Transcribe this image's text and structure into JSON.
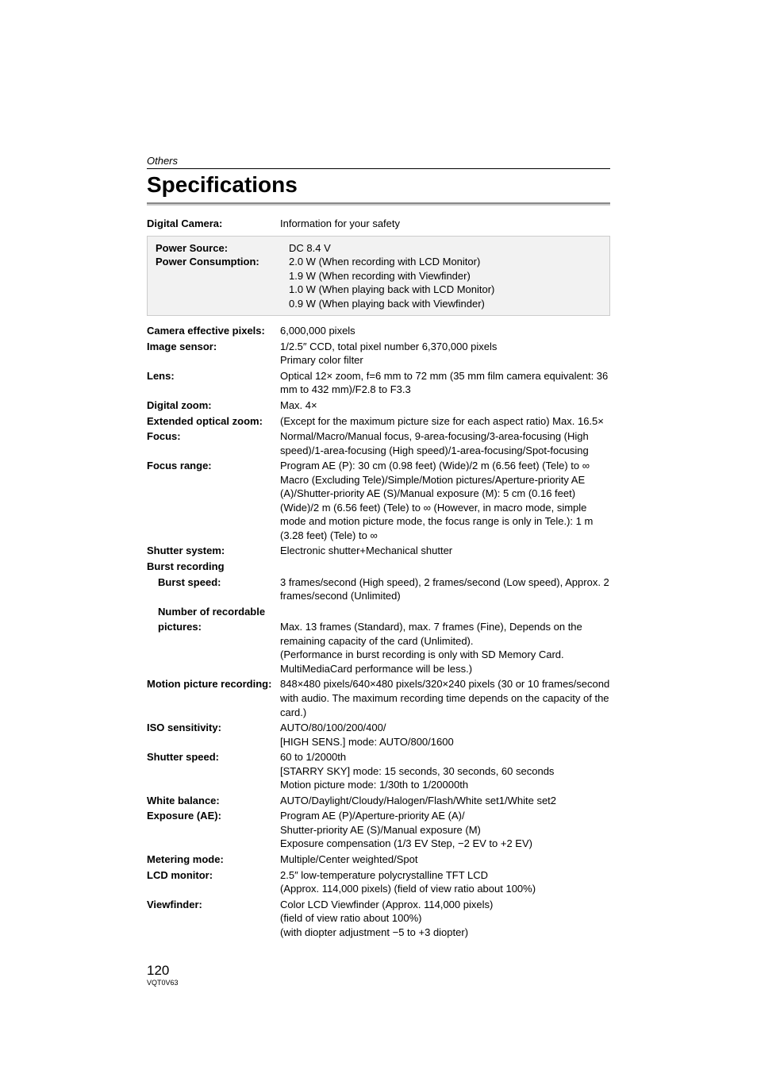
{
  "section": "Others",
  "title": "Specifications",
  "digital_camera": {
    "label": "Digital Camera:",
    "value": "Information for your safety"
  },
  "power_source": {
    "label": "Power Source:",
    "value": "DC 8.4 V"
  },
  "power_consumption": {
    "label": "Power Consumption:",
    "lines": [
      "2.0 W (When recording with LCD Monitor)",
      "1.9 W (When recording with Viewfinder)",
      "1.0 W (When playing back with LCD Monitor)",
      "0.9 W (When playing back with Viewfinder)"
    ]
  },
  "camera_effective_pixels": {
    "label": "Camera effective pixels:",
    "value": "6,000,000 pixels"
  },
  "image_sensor": {
    "label": "Image sensor:",
    "lines": [
      "1/2.5″ CCD, total pixel number 6,370,000 pixels",
      "Primary color filter"
    ]
  },
  "lens": {
    "label": "Lens:",
    "lines": [
      "Optical 12× zoom, f=6 mm to 72 mm (35 mm film camera equivalent: 36 mm to 432 mm)/F2.8 to F3.3"
    ]
  },
  "digital_zoom": {
    "label": "Digital zoom:",
    "value": "Max. 4×"
  },
  "extended_optical_zoom": {
    "label": "Extended optical zoom:",
    "lines": [
      "(Except for the maximum picture size for each aspect ratio) Max. 16.5×"
    ]
  },
  "focus": {
    "label": "Focus:",
    "lines": [
      "Normal/Macro/Manual focus, 9-area-focusing/3-area-focusing (High speed)/1-area-focusing (High speed)/1-area-focusing/Spot-focusing"
    ]
  },
  "focus_range": {
    "label": "Focus range:",
    "lines": [
      "Program AE (P): 30 cm (0.98 feet) (Wide)/2 m (6.56 feet) (Tele) to ∞ Macro (Excluding Tele)/Simple/Motion pictures/Aperture-priority AE (A)/Shutter-priority AE (S)/Manual exposure (M): 5 cm (0.16 feet) (Wide)/2 m (6.56 feet) (Tele) to ∞ (However, in macro mode, simple mode and motion picture mode, the focus range is only in Tele.): 1 m (3.28 feet) (Tele) to ∞"
    ]
  },
  "shutter_system": {
    "label": "Shutter system:",
    "value": "Electronic shutter+Mechanical shutter"
  },
  "burst_recording": {
    "label": "Burst recording"
  },
  "burst_speed": {
    "label": "Burst speed:",
    "lines": [
      "3 frames/second (High speed), 2 frames/second (Low speed), Approx. 2 frames/second (Unlimited)"
    ]
  },
  "num_recordable_label1": "Number of recordable",
  "num_recordable_label2": "pictures:",
  "num_recordable": {
    "lines": [
      "Max. 13 frames (Standard), max. 7 frames (Fine), Depends on the remaining capacity of the card (Unlimited).",
      "(Performance in burst recording is only with SD Memory Card. MultiMediaCard performance will be less.)"
    ]
  },
  "motion_picture": {
    "label": "Motion picture recording:",
    "lines": [
      "848×480 pixels/640×480 pixels/320×240 pixels (30 or 10 frames/second with audio. The maximum recording time depends on the capacity of the card.)"
    ]
  },
  "iso_sensitivity": {
    "label": "ISO sensitivity:",
    "lines": [
      "AUTO/80/100/200/400/",
      "[HIGH SENS.] mode: AUTO/800/1600"
    ]
  },
  "shutter_speed": {
    "label": "Shutter speed:",
    "lines": [
      "60 to 1/2000th",
      "[STARRY SKY] mode: 15 seconds, 30 seconds, 60 seconds",
      "Motion picture mode:   1/30th to 1/20000th"
    ]
  },
  "white_balance": {
    "label": "White balance:",
    "value": "AUTO/Daylight/Cloudy/Halogen/Flash/White set1/White set2"
  },
  "exposure_ae": {
    "label": "Exposure (AE):",
    "lines": [
      "Program AE (P)/Aperture-priority AE (A)/",
      "Shutter-priority AE (S)/Manual exposure (M)",
      "Exposure compensation (1/3 EV Step, −2 EV to +2 EV)"
    ]
  },
  "metering_mode": {
    "label": "Metering mode:",
    "value": "Multiple/Center weighted/Spot"
  },
  "lcd_monitor": {
    "label": "LCD monitor:",
    "lines": [
      "2.5″ low-temperature polycrystalline TFT LCD",
      "(Approx. 114,000 pixels) (field of view ratio about 100%)"
    ]
  },
  "viewfinder": {
    "label": "Viewfinder:",
    "lines": [
      "Color LCD Viewfinder (Approx. 114,000 pixels)",
      "(field of view ratio about 100%)",
      "(with diopter adjustment −5 to +3 diopter)"
    ]
  },
  "page_number": "120",
  "doc_code": "VQT0V63"
}
